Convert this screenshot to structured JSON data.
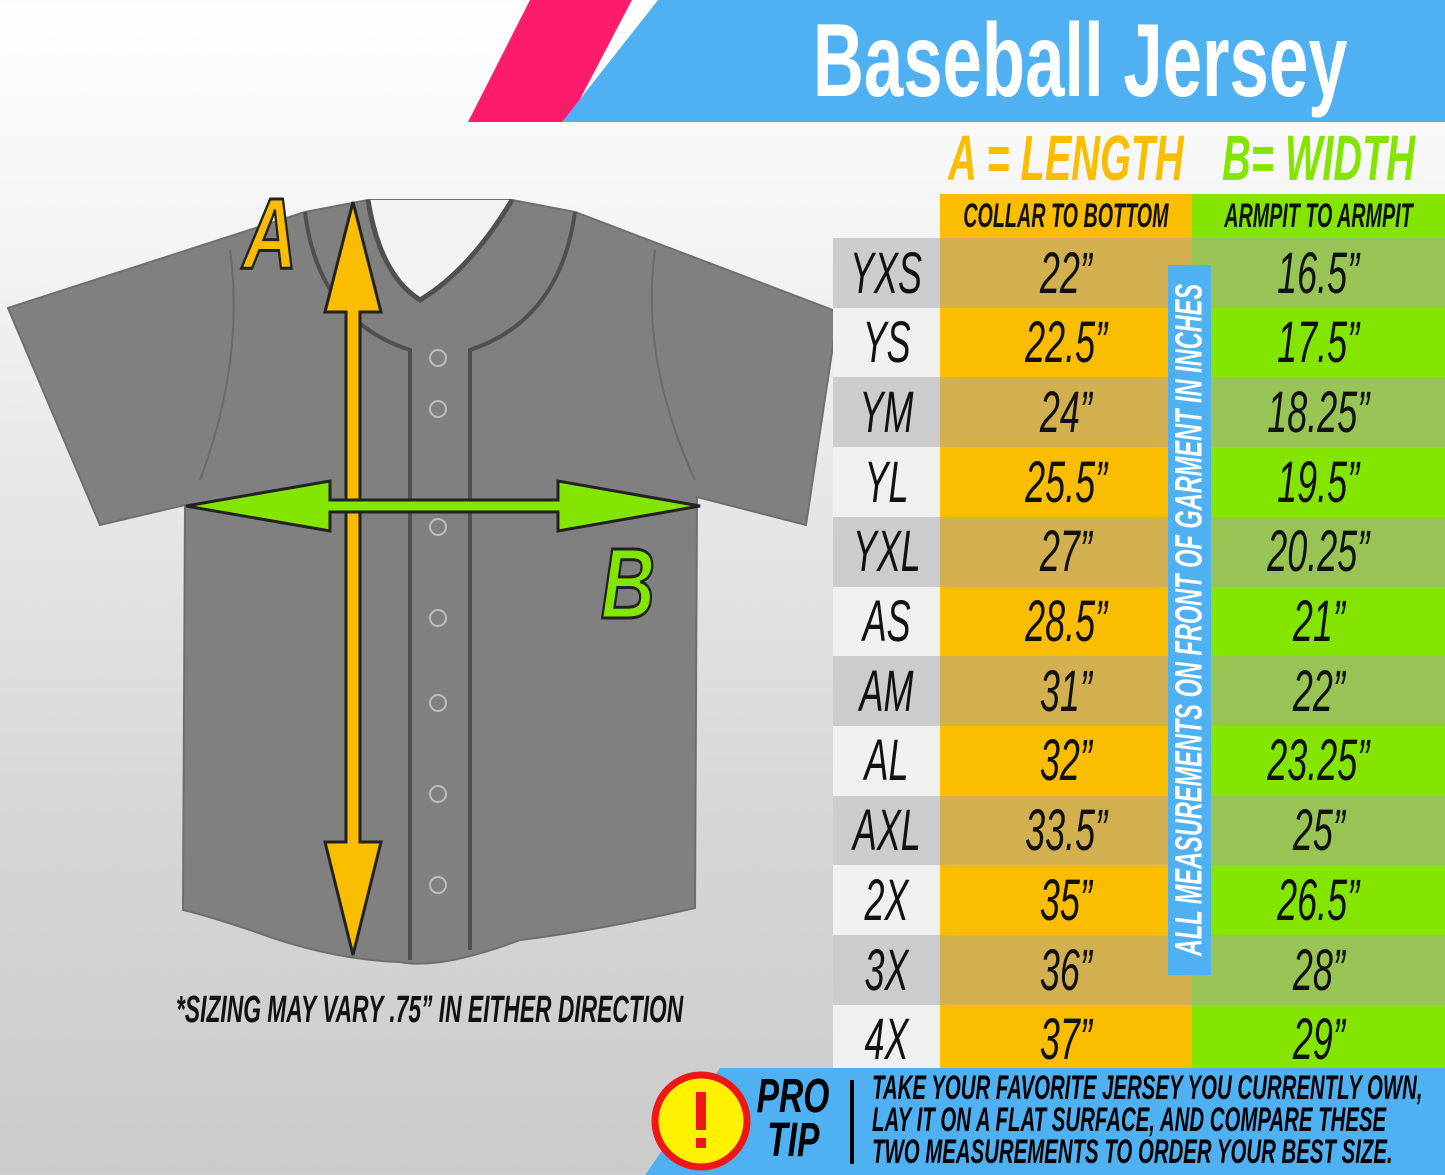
{
  "title": "Baseball Jersey",
  "colors": {
    "blue": "#4fb0f2",
    "pink": "#fc1c6b",
    "orange": "#fbbd00",
    "green": "#84e600",
    "jersey": "#808080"
  },
  "diagram": {
    "label_a": "A",
    "label_b": "B"
  },
  "headers": {
    "a_title": "A = LENGTH",
    "b_title": "B= WIDTH",
    "a_sub": "COLLAR TO BOTTOM",
    "b_sub": "ARMPIT TO ARMPIT"
  },
  "side_label": "ALL MEASUREMENTS ON FRONT OF GARMENT IN INCHES",
  "rows": [
    {
      "size": "YXS",
      "length": "22”",
      "width": "16.5”"
    },
    {
      "size": "YS",
      "length": "22.5”",
      "width": "17.5”"
    },
    {
      "size": "YM",
      "length": "24”",
      "width": "18.25”"
    },
    {
      "size": "YL",
      "length": "25.5”",
      "width": "19.5”"
    },
    {
      "size": "YXL",
      "length": "27”",
      "width": "20.25”"
    },
    {
      "size": "AS",
      "length": "28.5”",
      "width": "21”"
    },
    {
      "size": "AM",
      "length": "31”",
      "width": "22”"
    },
    {
      "size": "AL",
      "length": "32”",
      "width": "23.25”"
    },
    {
      "size": "AXL",
      "length": "33.5”",
      "width": "25”"
    },
    {
      "size": "2X",
      "length": "35”",
      "width": "26.5”"
    },
    {
      "size": "3X",
      "length": "36”",
      "width": "28”"
    },
    {
      "size": "4X",
      "length": "37”",
      "width": "29”"
    }
  ],
  "note": "*SIZING MAY VARY .75” IN EITHER DIRECTION",
  "protip": {
    "icon": "exclamation-icon",
    "label_line1": "PRO",
    "label_line2": "TIP",
    "lines": [
      "TAKE YOUR FAVORITE JERSEY YOU CURRENTLY OWN,",
      "LAY IT ON A FLAT SURFACE, AND COMPARE THESE",
      "TWO MEASUREMENTS TO ORDER YOUR BEST SIZE."
    ]
  }
}
